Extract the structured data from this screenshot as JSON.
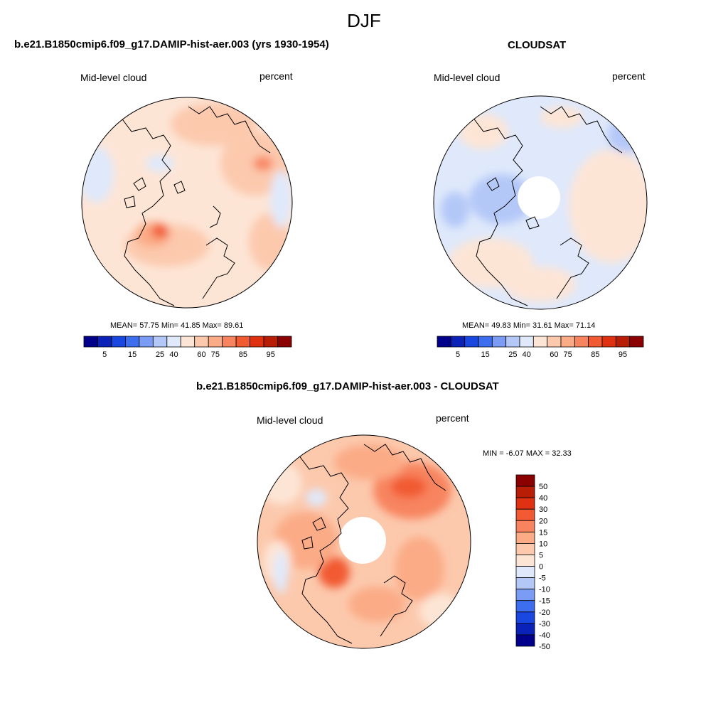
{
  "title": "DJF",
  "panels": [
    {
      "title": "b.e21.B1850cmip6.f09_g17.DAMIP-hist-aer.003 (yrs 1930-1954)",
      "left_label": "Mid-level cloud",
      "right_label": "percent",
      "stats": "MEAN=  57.75  Min=  41.85  Max=  89.61",
      "colorbar_ticks": [
        "5",
        "15",
        "25",
        "40",
        "60",
        "75",
        "85",
        "95"
      ]
    },
    {
      "title": "CLOUDSAT",
      "left_label": "Mid-level cloud",
      "right_label": "percent",
      "stats": "MEAN=  49.83  Min=  31.61  Max=  71.14",
      "colorbar_ticks": [
        "5",
        "15",
        "25",
        "40",
        "60",
        "75",
        "85",
        "95"
      ]
    },
    {
      "title": "b.e21.B1850cmip6.f09_g17.DAMIP-hist-aer.003 - CLOUDSAT",
      "left_label": "Mid-level cloud",
      "right_label": "percent",
      "stats": "MIN =  -6.07 MAX =  32.33",
      "colorbar_ticks": [
        "50",
        "40",
        "30",
        "20",
        "15",
        "10",
        "5",
        "0",
        "-5",
        "-10",
        "-15",
        "-20",
        "-30",
        "-40",
        "-50"
      ]
    }
  ],
  "colors": {
    "abs_scale": [
      "#00008b",
      "#0a22b8",
      "#1947e0",
      "#3d6ef0",
      "#7a9cf5",
      "#b4c8f8",
      "#dfe9fb",
      "#fde5d6",
      "#fcc9ad",
      "#fbab86",
      "#f7845e",
      "#f15a33",
      "#e03212",
      "#b81d06",
      "#8b0000"
    ],
    "diff_scale": [
      "#8b0000",
      "#b81d06",
      "#e03212",
      "#f15a33",
      "#f7845e",
      "#fbab86",
      "#fcc9ad",
      "#fde5d6",
      "#dfe9fb",
      "#b4c8f8",
      "#7a9cf5",
      "#3d6ef0",
      "#1947e0",
      "#0a22b8",
      "#00008b"
    ]
  }
}
